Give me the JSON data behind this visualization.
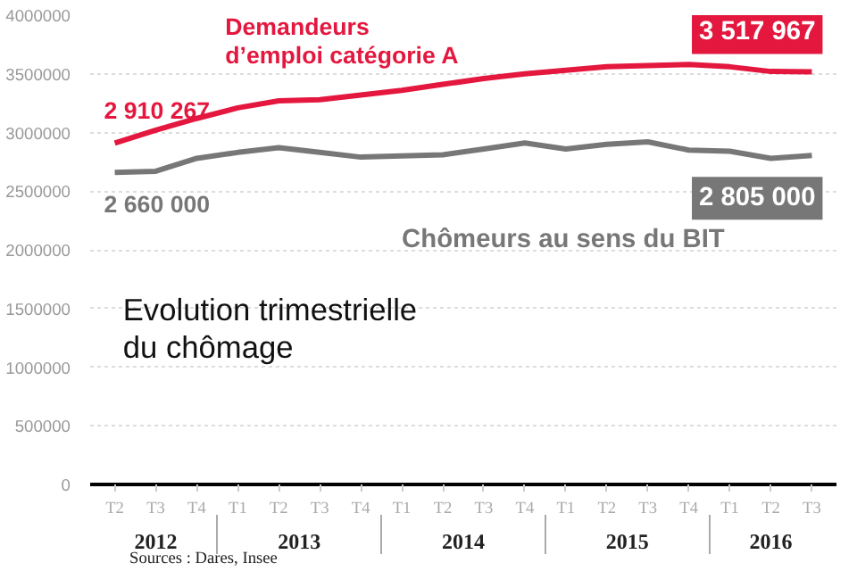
{
  "chart_data": {
    "type": "line",
    "title": "Evolution trimestrielle du chômage",
    "categories": [
      "T2",
      "T3",
      "T4",
      "T1",
      "T2",
      "T3",
      "T4",
      "T1",
      "T2",
      "T3",
      "T4",
      "T1",
      "T2",
      "T3",
      "T4",
      "T1",
      "T2",
      "T3"
    ],
    "series": [
      {
        "name": "Demandeurs d’emploi catégorie A",
        "color": "#e4173e",
        "values": [
          2910267,
          3020000,
          3120000,
          3210000,
          3270000,
          3280000,
          3320000,
          3360000,
          3410000,
          3460000,
          3500000,
          3530000,
          3560000,
          3570000,
          3580000,
          3560000,
          3520000,
          3517967
        ],
        "value_labels": [
          "2 910 267",
          null,
          null,
          null,
          null,
          null,
          null,
          null,
          null,
          null,
          null,
          null,
          null,
          null,
          null,
          null,
          null,
          "3 517 967"
        ]
      },
      {
        "name": "Chômeurs au sens du BIT",
        "color": "#777777",
        "values": [
          2660000,
          2670000,
          2780000,
          2830000,
          2870000,
          2830000,
          2790000,
          2800000,
          2810000,
          2860000,
          2910000,
          2860000,
          2900000,
          2920000,
          2850000,
          2840000,
          2780000,
          2805000
        ],
        "value_labels": [
          "2 660 000",
          null,
          null,
          null,
          null,
          null,
          null,
          null,
          null,
          null,
          null,
          null,
          null,
          null,
          null,
          null,
          null,
          "2 805 000"
        ]
      }
    ],
    "ylim": [
      0,
      4000000
    ],
    "yticks": [
      0,
      500000,
      1000000,
      1500000,
      2000000,
      2500000,
      3000000,
      3500000,
      4000000
    ],
    "grid": "y",
    "legend": false,
    "marker": "none",
    "line_style": "solid",
    "annotations": [
      "2012",
      "2013",
      "2014",
      "2015",
      "2016",
      "Sources : Dares, Insee"
    ]
  }
}
